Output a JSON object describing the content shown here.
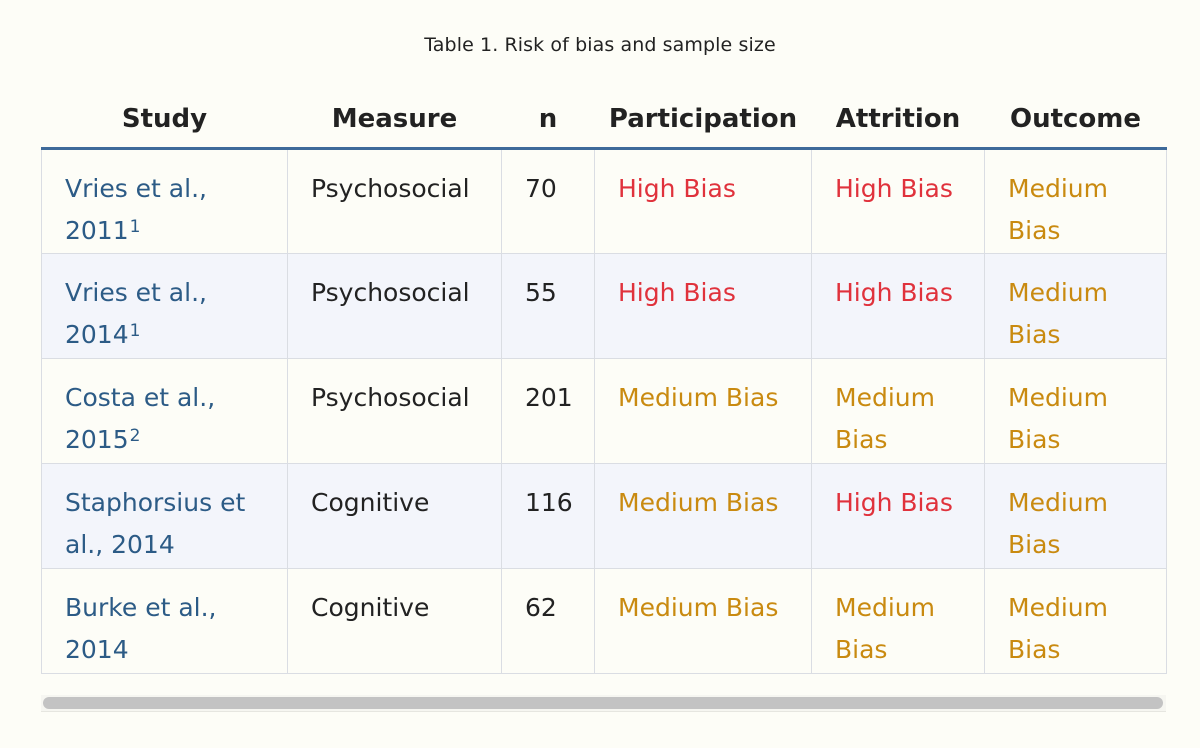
{
  "caption": "Table 1. Risk of bias and sample size",
  "headers": [
    "Study",
    "Measure",
    "n",
    "Participation",
    "Attrition",
    "Outcome"
  ],
  "rows": [
    {
      "study": "Vries et al., 2011",
      "ref": "1",
      "measure": "Psychosocial",
      "n": "70",
      "participation": "High Bias",
      "attrition": "High Bias",
      "outcome": "Medium Bias"
    },
    {
      "study": "Vries et al., 2014",
      "ref": "1",
      "measure": "Psychosocial",
      "n": "55",
      "participation": "High Bias",
      "attrition": "High Bias",
      "outcome": "Medium Bias"
    },
    {
      "study": "Costa et al., 2015",
      "ref": "2",
      "measure": "Psychosocial",
      "n": "201",
      "participation": "Medium Bias",
      "attrition": "Medium Bias",
      "outcome": "Medium Bias"
    },
    {
      "study": "Staphorsius et al., 2014",
      "ref": "",
      "measure": "Cognitive",
      "n": "116",
      "participation": "Medium Bias",
      "attrition": "High Bias",
      "outcome": "Medium Bias"
    },
    {
      "study": "Burke et al., 2014",
      "ref": "",
      "measure": "Cognitive",
      "n": "62",
      "participation": "Medium Bias",
      "attrition": "Medium Bias",
      "outcome": "Medium Bias"
    }
  ],
  "colors": {
    "high_bias": "#e0323c",
    "medium_bias": "#c98a10",
    "study_link": "#2c5b86",
    "header_rule": "#3e6a9a"
  }
}
